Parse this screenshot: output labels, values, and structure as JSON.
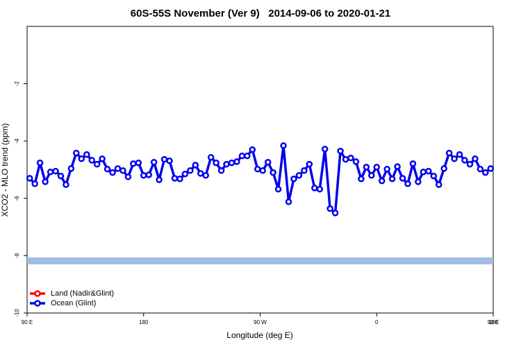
{
  "chart_data": {
    "type": "line",
    "title": "60S-55S November (Ver 9)   2014-09-06 to 2020-01-21",
    "x_label": "Longitude (deg E)",
    "y_label": "XCO2 - MLO trend (ppm)",
    "xlim": [
      90,
      450
    ],
    "xticks": [
      {
        "value": 90,
        "label": "90 E"
      },
      {
        "value": 180,
        "label": "180"
      },
      {
        "value": 270,
        "label": "90 W"
      },
      {
        "value": 360,
        "label": "0"
      },
      {
        "value": 450,
        "label": "90 E"
      },
      {
        "value": 540,
        "label": "180"
      }
    ],
    "ylim": [
      -10,
      0
    ],
    "yticks": [
      -10,
      -8,
      -6,
      -4,
      -2
    ],
    "band": [
      -8.3,
      -8.06
    ],
    "band_color": "#a3bcdf",
    "legend": "bottom-left",
    "x": [
      92,
      96,
      100,
      104,
      108,
      112,
      116,
      120,
      124,
      128,
      132,
      136,
      140,
      144,
      148,
      152,
      156,
      160,
      164,
      168,
      172,
      176,
      180,
      184,
      188,
      192,
      196,
      200,
      204,
      208,
      212,
      216,
      220,
      224,
      228,
      232,
      236,
      240,
      244,
      248,
      252,
      256,
      260,
      264,
      268,
      272,
      276,
      280,
      284,
      288,
      292,
      296,
      300,
      304,
      308,
      312,
      316,
      320,
      324,
      328,
      332,
      336,
      340,
      344,
      348,
      352,
      356,
      360,
      364,
      368,
      372,
      376,
      380,
      384,
      388,
      392,
      396,
      400,
      404,
      408,
      412,
      416,
      420,
      424,
      428,
      432,
      436,
      440,
      444,
      448
    ],
    "series": [
      {
        "name": "Land (Nadir&Glint)",
        "color": "#ff0000",
        "values": [
          null,
          null,
          null,
          null,
          null,
          null,
          null,
          null,
          null,
          null,
          null,
          null,
          null,
          null,
          null,
          null,
          null,
          null,
          null,
          null,
          null,
          null,
          null,
          null,
          null,
          null,
          null,
          null,
          null,
          null,
          null,
          null,
          null,
          null,
          null,
          null,
          null,
          null,
          null,
          null,
          null,
          null,
          null,
          null,
          null,
          null,
          null,
          null,
          null,
          null,
          null,
          null,
          null,
          null,
          null,
          null,
          null,
          null,
          null,
          null,
          null,
          null,
          null,
          null,
          null,
          null,
          null,
          null,
          null,
          null,
          null,
          null,
          null,
          null,
          null,
          null,
          null,
          null,
          null,
          null,
          null,
          null,
          null,
          null,
          null,
          null,
          null,
          null,
          null,
          null
        ]
      },
      {
        "name": "Ocean (Glint)",
        "color": "#0000ee",
        "values": [
          -5.3,
          -5.49,
          -4.76,
          -5.42,
          -5.08,
          -5.05,
          -5.22,
          -5.52,
          -4.96,
          -4.42,
          -4.62,
          -4.47,
          -4.67,
          -4.81,
          -4.62,
          -4.98,
          -5.1,
          -4.96,
          -5.03,
          -5.25,
          -4.79,
          -4.76,
          -5.2,
          -5.18,
          -4.74,
          -5.35,
          -4.64,
          -4.69,
          -5.3,
          -5.32,
          -5.15,
          -5.03,
          -4.84,
          -5.13,
          -5.2,
          -4.57,
          -4.76,
          -5.03,
          -4.81,
          -4.76,
          -4.72,
          -4.52,
          -4.52,
          -4.3,
          -4.98,
          -5.03,
          -4.74,
          -5.1,
          -5.68,
          -4.16,
          -6.12,
          -5.32,
          -5.2,
          -5.03,
          -4.81,
          -5.64,
          -5.68,
          -4.28,
          -6.36,
          -6.51,
          -4.35,
          -4.64,
          -4.59,
          -4.72,
          -5.32,
          -4.91,
          -5.2,
          -4.91,
          -5.39,
          -4.98,
          -5.32,
          -4.89,
          -5.3,
          -5.49,
          -4.79,
          -5.42,
          -5.08,
          -5.05,
          -5.22,
          -5.52,
          -4.96,
          -4.42,
          -4.62,
          -4.47,
          -4.67,
          -4.81,
          -4.62,
          -4.98,
          -5.1,
          -4.96
        ]
      }
    ]
  }
}
